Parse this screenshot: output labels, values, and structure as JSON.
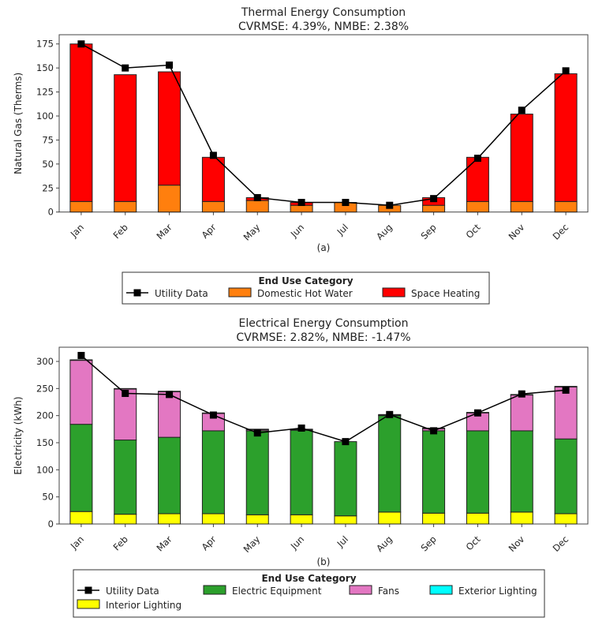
{
  "chart_data": [
    {
      "type": "bar",
      "stacked": true,
      "title": "Thermal Energy Consumption",
      "subtitle": "CVRMSE: 4.39%, NMBE: 2.38%",
      "xlabel": "",
      "ylabel": "Natural Gas (Therms)",
      "caption": "(a)",
      "categories": [
        "Jan",
        "Feb",
        "Mar",
        "Apr",
        "May",
        "Jun",
        "Jul",
        "Aug",
        "Sep",
        "Oct",
        "Nov",
        "Dec"
      ],
      "ylim": [
        0,
        180
      ],
      "yticks": [
        0,
        25,
        50,
        75,
        100,
        125,
        150,
        175
      ],
      "grid": false,
      "legend": {
        "title": "End Use Category",
        "placement": "bottom",
        "entries": [
          "Utility Data",
          "Domestic Hot Water",
          "Space Heating"
        ]
      },
      "series": [
        {
          "name": "Domestic Hot Water",
          "color": "#ff7f0e",
          "values": [
            11,
            11,
            28,
            11,
            12,
            7,
            10,
            7,
            7,
            11,
            11,
            11
          ]
        },
        {
          "name": "Space Heating",
          "color": "#ff0000",
          "values": [
            164,
            132,
            118,
            46,
            3,
            3,
            0,
            0,
            8,
            46,
            91,
            133
          ]
        }
      ],
      "line": {
        "name": "Utility Data",
        "color": "#000000",
        "values": [
          175,
          150,
          153,
          59,
          15,
          10,
          10,
          7,
          14,
          56,
          106,
          147
        ]
      }
    },
    {
      "type": "bar",
      "stacked": true,
      "title": "Electrical Energy Consumption",
      "subtitle": "CVRMSE: 2.82%, NMBE: -1.47%",
      "xlabel": "",
      "ylabel": "Electricity (kWh)",
      "caption": "(b)",
      "categories": [
        "Jan",
        "Feb",
        "Mar",
        "Apr",
        "May",
        "Jun",
        "Jul",
        "Aug",
        "Sep",
        "Oct",
        "Nov",
        "Dec"
      ],
      "ylim": [
        0,
        325
      ],
      "yticks": [
        0,
        50,
        100,
        150,
        200,
        250,
        300
      ],
      "grid": false,
      "legend": {
        "title": "End Use Category",
        "placement": "bottom",
        "entries": [
          "Utility Data",
          "Electric Equipment",
          "Fans",
          "Exterior Lighting",
          "Interior Lighting"
        ]
      },
      "series": [
        {
          "name": "Interior Lighting",
          "color": "#ffff00",
          "values": [
            23,
            18,
            19,
            19,
            17,
            17,
            15,
            22,
            20,
            20,
            22,
            19
          ]
        },
        {
          "name": "Electric Equipment",
          "color": "#2ca02c",
          "values": [
            161,
            137,
            141,
            153,
            155,
            156,
            137,
            178,
            152,
            152,
            150,
            138
          ]
        },
        {
          "name": "Fans",
          "color": "#e377c2",
          "values": [
            118,
            94,
            84,
            32,
            2,
            1,
            0,
            1,
            4,
            33,
            66,
            96
          ]
        },
        {
          "name": "Exterior Lighting",
          "color": "#00ffff",
          "values": [
            1,
            1,
            1,
            1,
            1,
            1,
            0,
            1,
            1,
            1,
            1,
            1
          ]
        }
      ],
      "line": {
        "name": "Utility Data",
        "color": "#000000",
        "values": [
          311,
          241,
          239,
          201,
          168,
          177,
          152,
          202,
          172,
          205,
          240,
          247
        ]
      }
    }
  ]
}
